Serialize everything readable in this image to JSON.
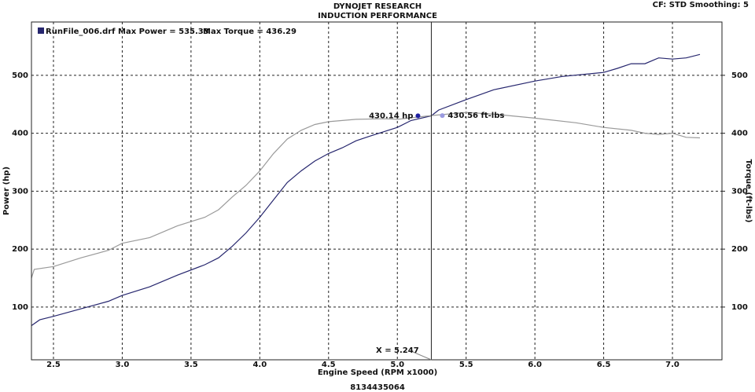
{
  "chart_data": {
    "type": "line",
    "title": "DYNOJET RESEARCH",
    "subtitle": "INDUCTION PERFORMANCE",
    "settings_text": "CF: STD  Smoothing: 5",
    "footer": "8134435064",
    "x_label": "Engine Speed (RPM x1000)",
    "y_label": "Power (hp)",
    "y2_label": "Torque (ft-lbs)",
    "xlim": [
      2.34,
      7.36
    ],
    "ylim": [
      9,
      592
    ],
    "y2lim": [
      9,
      592
    ],
    "xticks": [
      2.5,
      {
        "value": 3,
        "label": "3.0"
      },
      3.5,
      {
        "value": 4,
        "label": "4.0"
      },
      4.5,
      {
        "value": 5,
        "label": "5.0"
      },
      5.5,
      {
        "value": 6,
        "label": "6.0"
      },
      6.5,
      {
        "value": 7,
        "label": "7.0"
      }
    ],
    "yticks": [
      100,
      200,
      300,
      400,
      500
    ],
    "y2ticks": [
      100,
      200,
      300,
      400,
      500
    ],
    "grid": true,
    "series": [
      {
        "name": "RunFile_006.drf Max Power = 535.33",
        "color": "#26266e",
        "x": [
          2.34,
          2.4,
          2.5,
          2.7,
          2.9,
          3.0,
          3.2,
          3.4,
          3.6,
          3.7,
          3.8,
          3.9,
          4.0,
          4.1,
          4.2,
          4.3,
          4.4,
          4.5,
          4.6,
          4.7,
          4.8,
          5.0,
          5.1,
          5.247,
          5.3,
          5.5,
          5.7,
          6.0,
          6.2,
          6.5,
          6.6,
          6.7,
          6.8,
          6.9,
          7.0,
          7.1,
          7.2
        ],
        "values": [
          68,
          78,
          84,
          97,
          110,
          120,
          135,
          155,
          173,
          185,
          205,
          228,
          255,
          285,
          315,
          335,
          352,
          365,
          375,
          387,
          395,
          410,
          422,
          430.14,
          440,
          458,
          475,
          490,
          498,
          505,
          512,
          520,
          520,
          530,
          528,
          530,
          536
        ]
      },
      {
        "name": "Max Torque = 436.29",
        "color": "#9a9a9a",
        "axis": "y2",
        "x": [
          2.34,
          2.36,
          2.5,
          2.7,
          2.9,
          3.0,
          3.2,
          3.4,
          3.6,
          3.7,
          3.8,
          3.9,
          4.0,
          4.1,
          4.2,
          4.3,
          4.4,
          4.5,
          4.7,
          4.9,
          5.0,
          5.247,
          5.5,
          5.7,
          6.0,
          6.3,
          6.5,
          6.7,
          6.8,
          6.9,
          7.0,
          7.1,
          7.2
        ],
        "values": [
          150,
          165,
          170,
          185,
          198,
          210,
          220,
          240,
          255,
          268,
          290,
          310,
          335,
          365,
          390,
          405,
          415,
          420,
          424,
          425,
          424,
          430.56,
          436,
          433,
          426,
          418,
          410,
          405,
          400,
          398,
          400,
          393,
          392
        ]
      }
    ],
    "cursor": {
      "x": {
        "value": 5.247,
        "label": "X = 5.247"
      },
      "readouts": [
        {
          "value": 430.14,
          "label": "430.14 hp"
        },
        {
          "value": 430.56,
          "label": "430.56 ft-lbs"
        }
      ]
    }
  }
}
